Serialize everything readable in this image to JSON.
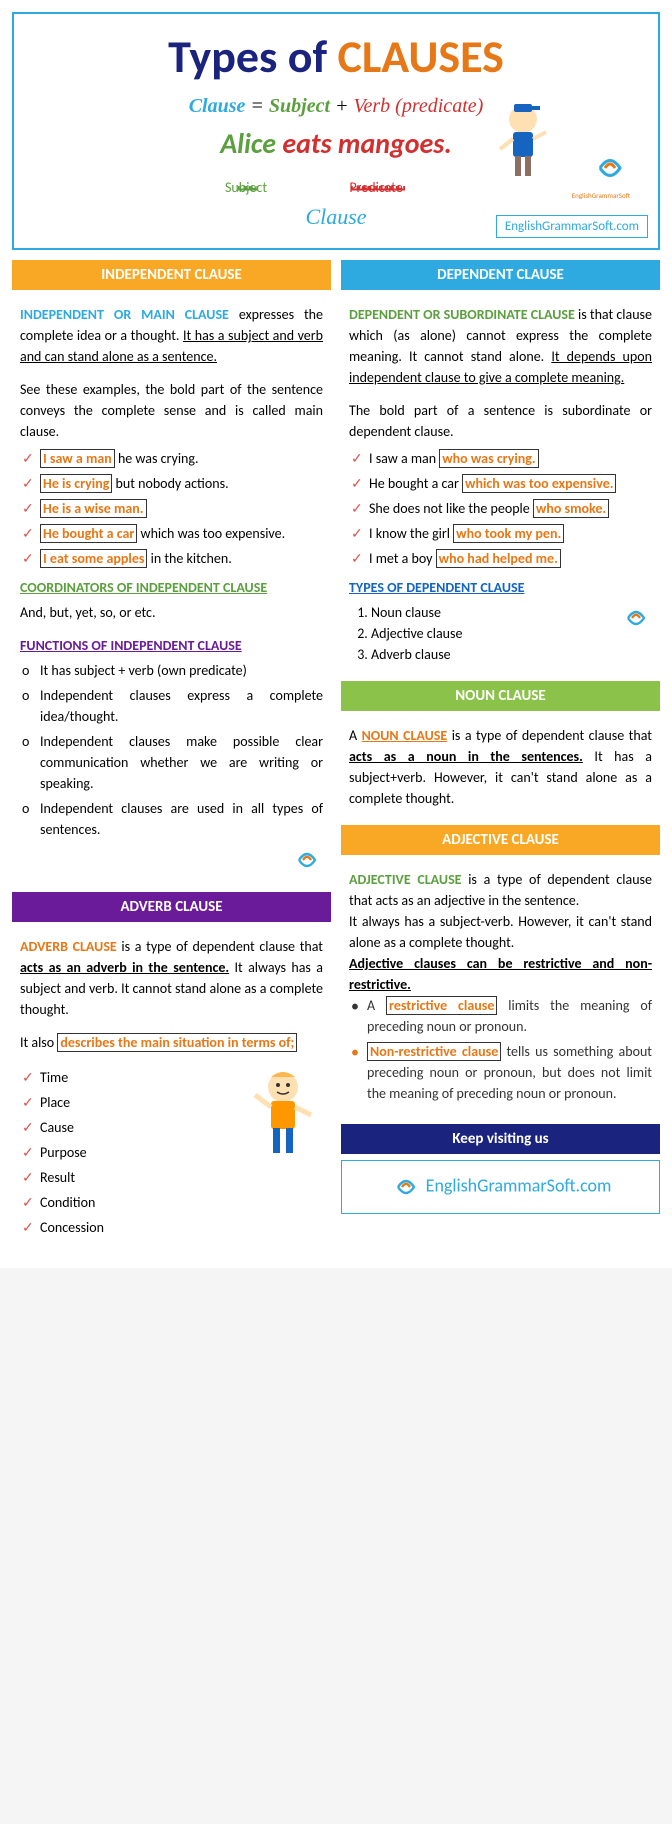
{
  "colors": {
    "navy": "#1a237e",
    "orange": "#E67817",
    "cyan": "#2EAAE0",
    "green": "#5B9F3E",
    "green_bright": "#8BC34A",
    "purple": "#6A1B9A",
    "red": "#D32F2F",
    "yellow": "#F9A825",
    "blue": "#1565C0"
  },
  "header": {
    "title_a": "Types of ",
    "title_b": "CLAUSES",
    "formula_parts": {
      "clause": "Clause",
      "eq": " = ",
      "subject": "Subject",
      "plus": " + ",
      "verb": "Verb (predicate)"
    },
    "example_subj": "Alice",
    "example_pred": " eats mangoes.",
    "subj_label": "Subject",
    "pred_label": "Predicate",
    "clause_label": "Clause",
    "url": "EnglishGrammarSoft.com",
    "logo_text": "EnglishGrammarSoft"
  },
  "independent": {
    "heading": "INDEPENDENT CLAUSE",
    "title": "INDEPENDENT OR MAIN CLAUSE",
    "intro_a": " expresses the complete idea or a thought. ",
    "intro_b": "It has a subject and verb and can stand alone as a sentence.",
    "para2": "See these examples, the bold part of the sentence conveys the complete sense and is called main clause.",
    "examples": [
      {
        "bold": "I saw a man",
        "rest": " he was crying."
      },
      {
        "bold": "He is crying",
        "rest": " but nobody actions."
      },
      {
        "bold": "He is a wise man.",
        "rest": ""
      },
      {
        "bold": "He bought a car",
        "rest": " which was too expensive."
      },
      {
        "bold": "I eat some apples",
        "rest": " in the kitchen."
      }
    ],
    "coord_head": "COORDINATORS OF INDEPENDENT CLAUSE",
    "coord_text": "And, but, yet, so, or etc.",
    "func_head": "FUNCTIONS OF INDEPENDENT CLAUSE",
    "functions": [
      "It has subject + verb (own predicate)",
      "Independent clauses express a complete idea/thought.",
      "Independent clauses make possible clear communication whether we are writing or speaking.",
      "Independent clauses are used in all types of sentences."
    ]
  },
  "dependent": {
    "heading": "DEPENDENT CLAUSE",
    "title": "DEPENDENT OR SUBORDINATE CLAUSE",
    "intro_a": " is that clause which (as alone) cannot express the complete meaning. It cannot stand alone. ",
    "intro_b": "It depends upon independent clause to give a complete meaning.",
    "para2": "The bold part of a sentence is subordinate or dependent clause.",
    "examples": [
      {
        "pre": "I saw a man ",
        "bold": "who was crying."
      },
      {
        "pre": "He bought a car ",
        "bold": "which was too expensive."
      },
      {
        "pre": "She does not like the people ",
        "bold": "who smoke."
      },
      {
        "pre": "I know the girl ",
        "bold": "who took my pen."
      },
      {
        "pre": "I met a boy ",
        "bold": "who had helped me."
      }
    ],
    "types_head": "TYPES OF DEPENDENT CLAUSE",
    "types": [
      "Noun clause",
      "Adjective clause",
      "Adverb clause"
    ]
  },
  "noun": {
    "heading": "NOUN CLAUSE",
    "pre": "A ",
    "title": "NOUN CLAUSE",
    "mid": " is a type of dependent clause that ",
    "bold": "acts as a noun in the sentences.",
    "rest": " It has a subject+verb. However, it can't stand alone as a complete thought."
  },
  "adjective": {
    "heading": "ADJECTIVE CLAUSE",
    "title": "ADJECTIVE CLAUSE",
    "intro": " is a type of dependent clause that acts as an adjective in the sentence.",
    "para2": "It always has a subject-verb. However, it can't stand alone as a complete thought.",
    "para3": "Adjective clauses can be restrictive and non-restrictive.",
    "items": [
      {
        "term": "restrictive clause",
        "text": " limits the meaning of preceding noun or pronoun.",
        "color": "#333"
      },
      {
        "term": "Non-restrictive clause",
        "text": " tells us something about preceding noun or pronoun, but does not limit the meaning of preceding noun or pronoun.",
        "color": "#E67817"
      }
    ]
  },
  "adverb": {
    "heading": "ADVERB CLAUSE",
    "title": "ADVERB CLAUSE",
    "intro_a": " is a type of dependent clause that ",
    "intro_b": "acts as an adverb in the sentence.",
    "intro_c": " It always has a subject and verb. It cannot stand alone as a complete thought.",
    "para2_a": "It also ",
    "para2_b": "describes the main situation in terms of;",
    "items": [
      "Time",
      "Place",
      "Cause",
      "Purpose",
      "Result",
      "Condition",
      "Concession"
    ]
  },
  "footer": {
    "heading": "Keep visiting us",
    "url": "EnglishGrammarSoft.com"
  }
}
